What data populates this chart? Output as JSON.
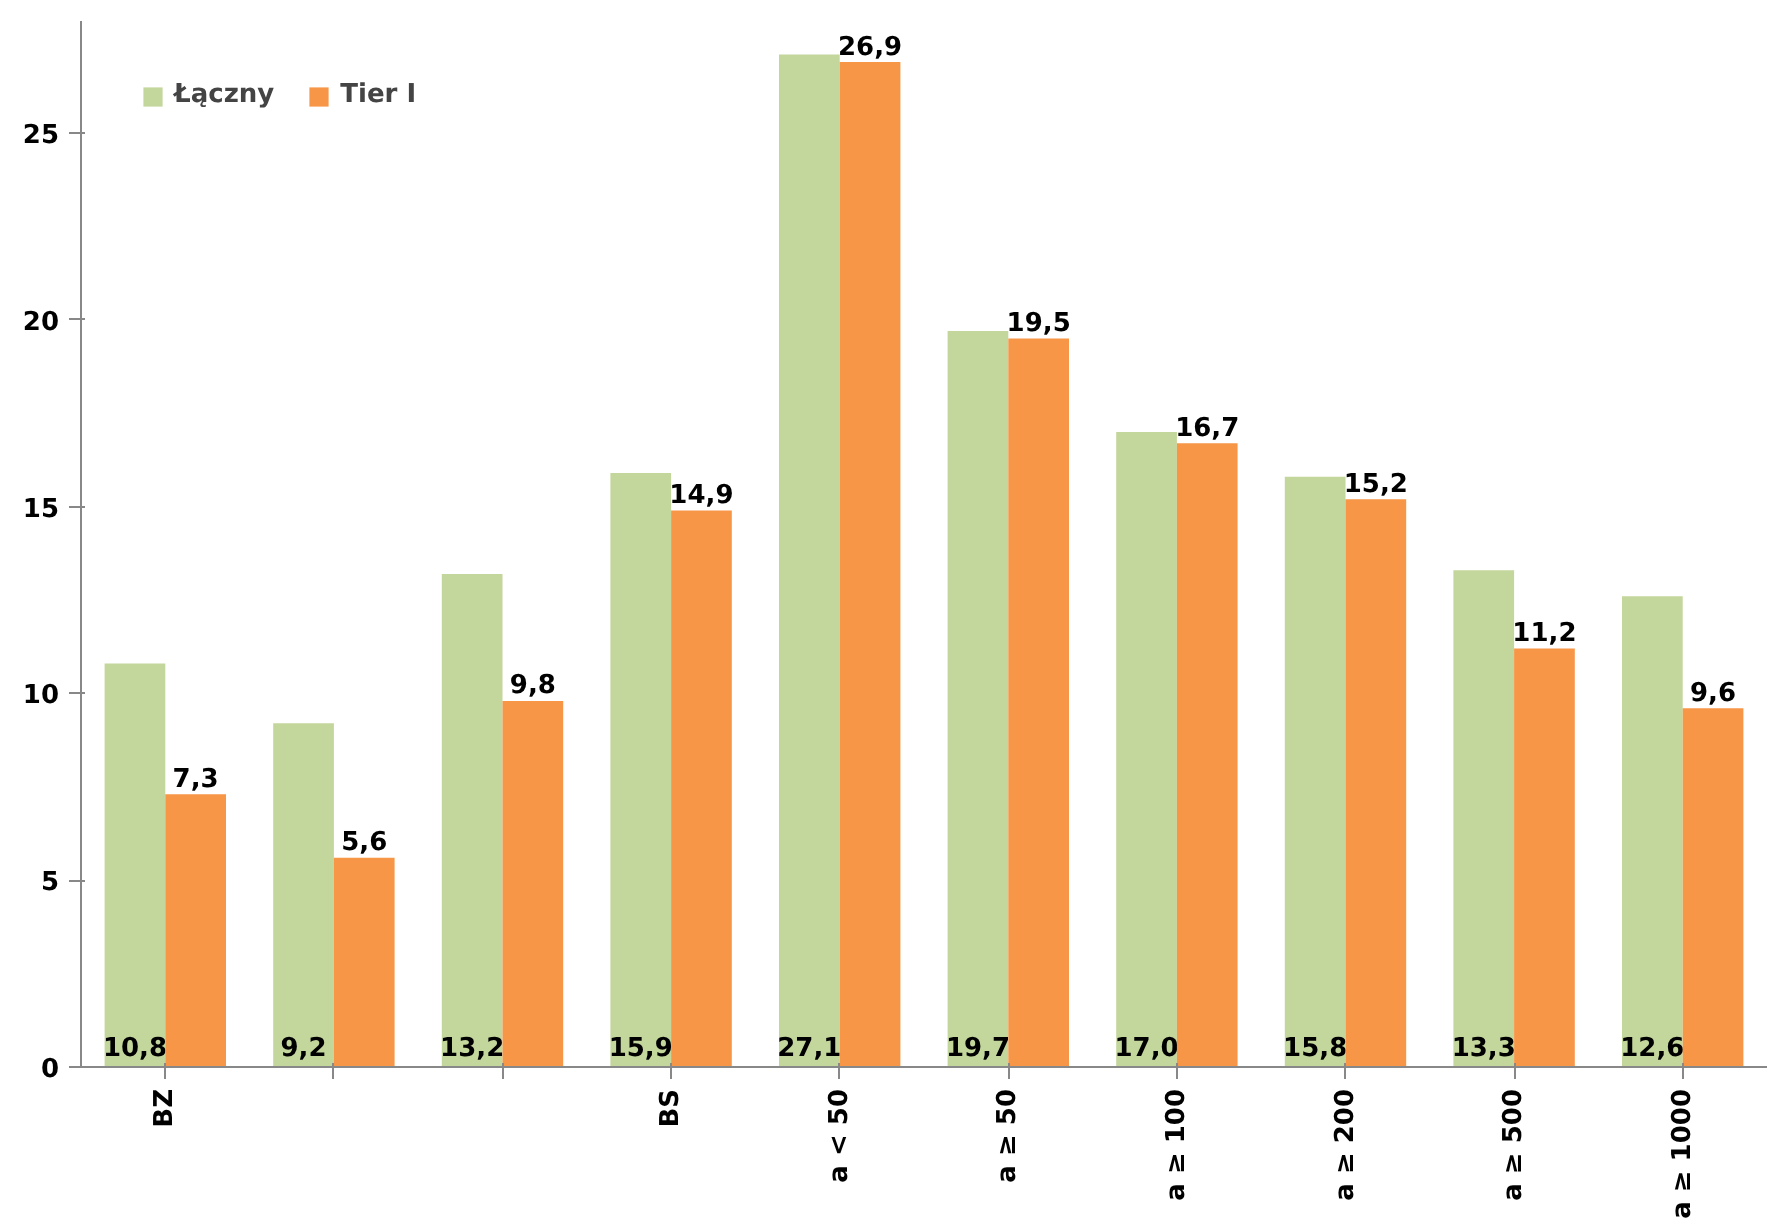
{
  "chart_data": {
    "type": "bar",
    "categories": [
      "BZ",
      null,
      null,
      "BS",
      "a < 50",
      "a ≥ 50",
      "a ≥ 100",
      "a ≥ 200",
      "a ≥ 500",
      "a ≥ 1000"
    ],
    "series": [
      {
        "name": "Łączny",
        "color": "#c3d69b",
        "values": [
          10.8,
          9.2,
          13.2,
          15.9,
          27.1,
          19.7,
          17.0,
          15.8,
          13.3,
          12.6
        ],
        "value_labels": [
          "10,8",
          "9,2",
          "13,2",
          "15,9",
          "27,1",
          "19,7",
          "17,0",
          "15,8",
          "13,3",
          "12,6"
        ]
      },
      {
        "name": "Tier I",
        "color": "#f79646",
        "values": [
          7.3,
          5.6,
          9.8,
          14.9,
          26.9,
          19.5,
          16.7,
          15.2,
          11.2,
          9.6
        ],
        "value_labels": [
          "7,3",
          "5,6",
          "9,8",
          "14,9",
          "26,9",
          "19,5",
          "16,7",
          "15,2",
          "11,2",
          "9,6"
        ]
      }
    ],
    "ylim": [
      0,
      28
    ],
    "yticks": [
      0,
      5,
      10,
      15,
      20,
      25
    ],
    "grid": false,
    "legend": "top left"
  }
}
